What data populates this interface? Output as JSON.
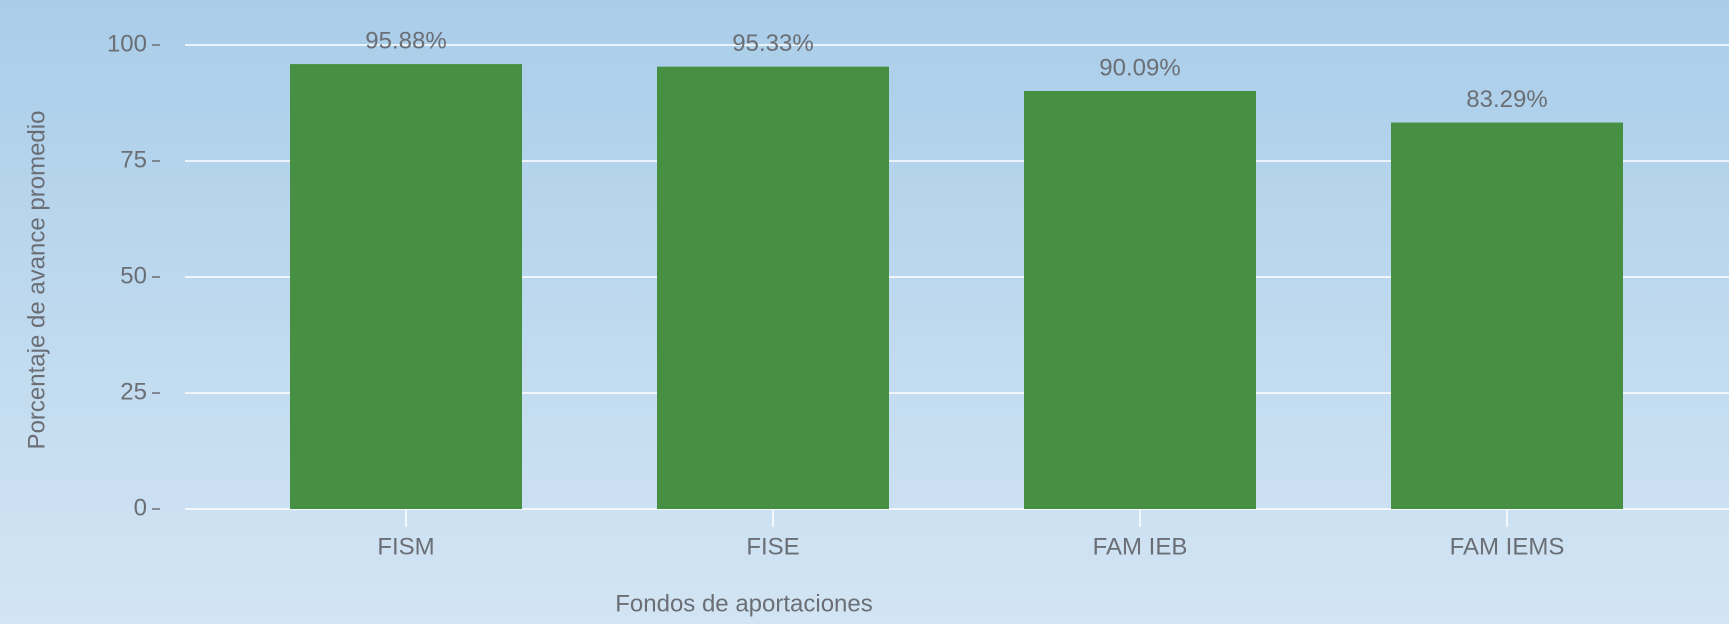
{
  "chart_data": {
    "type": "bar",
    "x_label": "Fondos de aportaciones",
    "y_label": "Porcentaje de avance promedio",
    "categories": [
      "FISM",
      "FISE",
      "FAM IEB",
      "FAM IEMS"
    ],
    "values": [
      95.88,
      95.33,
      90.09,
      83.29
    ],
    "value_labels": [
      "95.88%",
      "95.33%",
      "90.09%",
      "83.29%"
    ],
    "color": "#468f43",
    "ylim": [
      0,
      100
    ],
    "yticks": [
      0,
      25,
      50,
      75,
      100
    ],
    "grid": true
  }
}
